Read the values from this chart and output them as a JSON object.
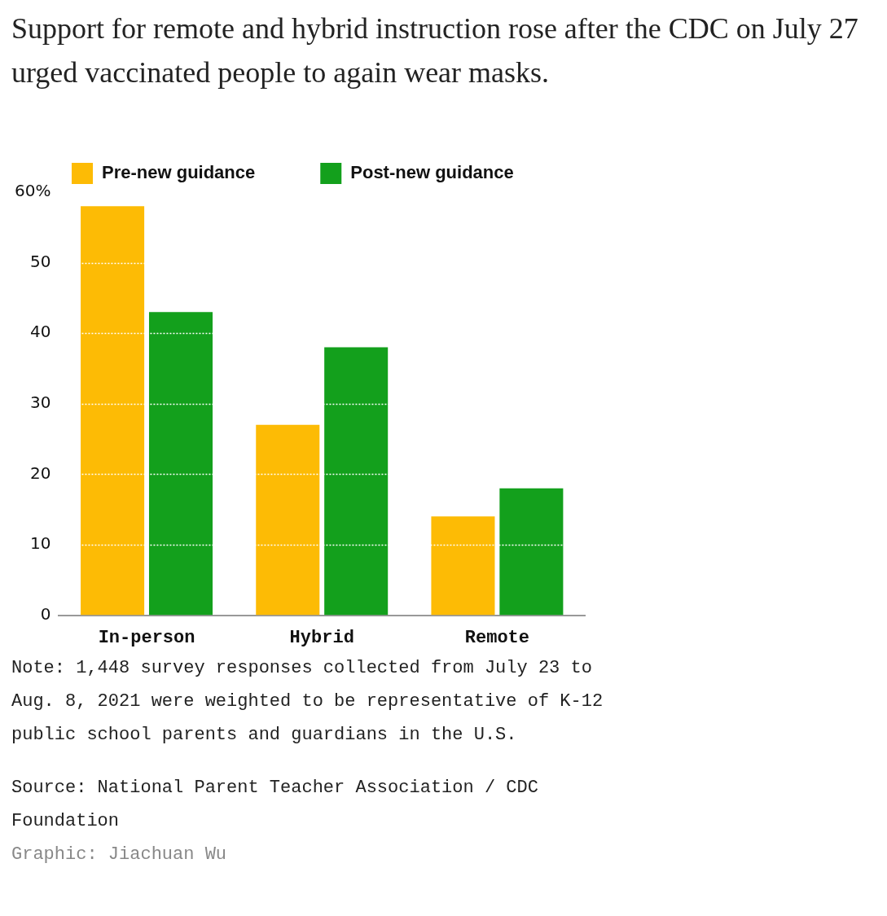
{
  "chart_data": {
    "type": "bar",
    "title": "Support for remote and hybrid instruction rose after the CDC on July 27 urged vaccinated people to again wear masks.",
    "categories": [
      "In-person",
      "Hybrid",
      "Remote"
    ],
    "series": [
      {
        "name": "Pre-new guidance",
        "color": "#fdbb05",
        "values": [
          58,
          27,
          14
        ]
      },
      {
        "name": "Post-new guidance",
        "color": "#13a01c",
        "values": [
          43,
          38,
          18
        ]
      }
    ],
    "ylim": [
      0,
      60
    ],
    "yticks": [
      0,
      10,
      20,
      30,
      40,
      50,
      {
        "value": 60,
        "label": "60%"
      }
    ],
    "grid": "y",
    "legend": "top left",
    "annotations": [
      "Note: 1,448 survey responses collected from July 23 to Aug. 8, 2021 were weighted to be representative of K-12 public school parents and guardians in the U.S.",
      "Source: National Parent Teacher Association / CDC Foundation",
      "Graphic: Jiachuan Wu"
    ]
  }
}
